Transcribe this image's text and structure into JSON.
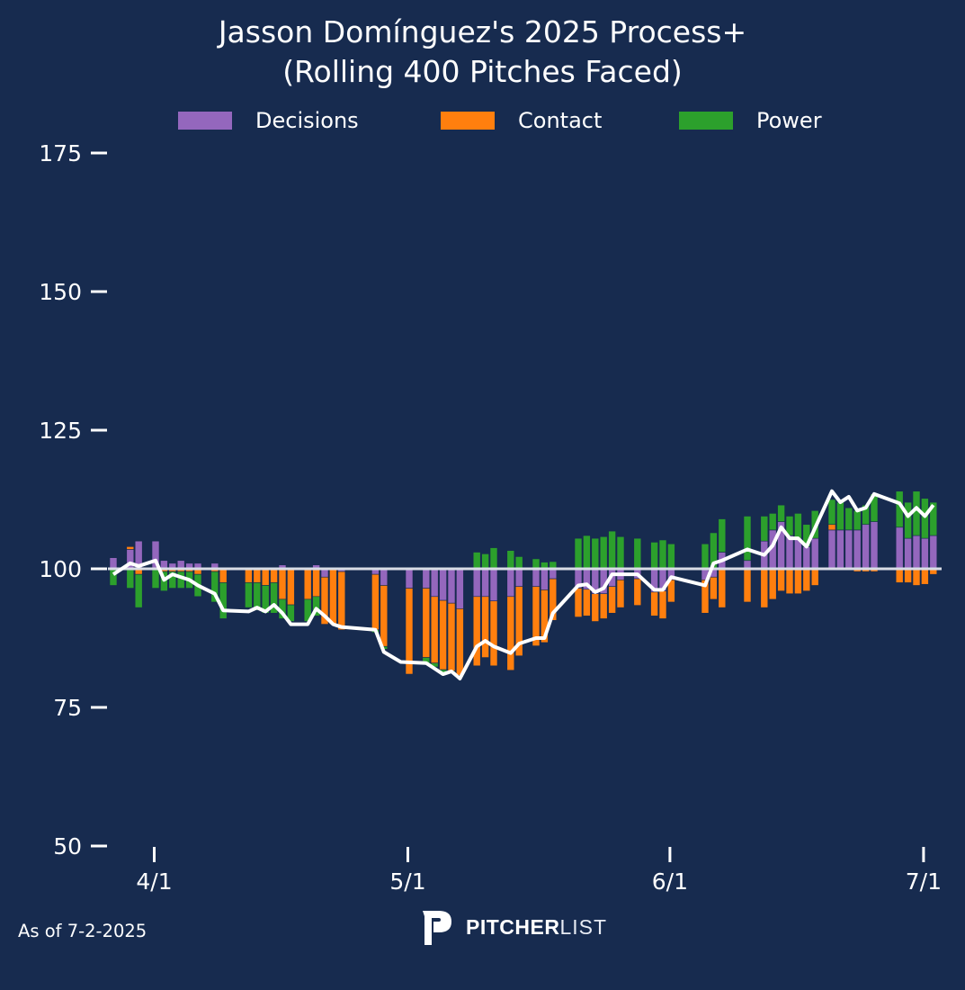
{
  "chart_data": {
    "type": "bar",
    "subtype": "stacked-diverging-with-line",
    "title": "Jasson Domínguez's 2025 Process+\n(Rolling 400 Pitches Faced)",
    "title_lines": [
      "Jasson Domínguez's 2025 Process+",
      "(Rolling 400 Pitches Faced)"
    ],
    "xlabel": "",
    "ylabel": "",
    "ylim": [
      50,
      175
    ],
    "yticks": [
      50,
      75,
      100,
      125,
      150,
      175
    ],
    "xticks": [
      {
        "label": "4/1",
        "day": 5
      },
      {
        "label": "5/1",
        "day": 35
      },
      {
        "label": "6/1",
        "day": 66
      },
      {
        "label": "7/1",
        "day": 96
      }
    ],
    "x_domain_days": [
      0,
      97
    ],
    "x_origin_date": "3/27",
    "baseline": 100,
    "grid": false,
    "legend": {
      "placement": "top-center",
      "entries": [
        {
          "name": "Decisions",
          "color": "#9467bd"
        },
        {
          "name": "Contact",
          "color": "#ff7f0e"
        },
        {
          "name": "Power",
          "color": "#2ca02c"
        }
      ]
    },
    "line_color": "#ffffff",
    "baseline_color": "#d9dde6",
    "series_keys": [
      "decisions",
      "contact",
      "power"
    ],
    "bars": [
      {
        "day": 0,
        "decisions": 2,
        "contact": 0,
        "power": -3
      },
      {
        "day": 2,
        "decisions": 3.5,
        "contact": 0.5,
        "power": -3.5
      },
      {
        "day": 3,
        "decisions": 5,
        "contact": -1,
        "power": -6
      },
      {
        "day": 5,
        "decisions": 5,
        "contact": 0,
        "power": -3.5
      },
      {
        "day": 6,
        "decisions": 1.5,
        "contact": -0.5,
        "power": -3.5
      },
      {
        "day": 7,
        "decisions": 1,
        "contact": -0.5,
        "power": -3
      },
      {
        "day": 8,
        "decisions": 1.5,
        "contact": -0.5,
        "power": -3
      },
      {
        "day": 9,
        "decisions": 1,
        "contact": -0.5,
        "power": -3
      },
      {
        "day": 10,
        "decisions": 1,
        "contact": -1,
        "power": -4
      },
      {
        "day": 12,
        "decisions": 1,
        "contact": -0.5,
        "power": -5.5
      },
      {
        "day": 13,
        "decisions": 0,
        "contact": -2.5,
        "power": -6.5
      },
      {
        "day": 16,
        "decisions": 0,
        "contact": -2.5,
        "power": -4.5
      },
      {
        "day": 17,
        "decisions": 0,
        "contact": -2.5,
        "power": -5
      },
      {
        "day": 18,
        "decisions": 0,
        "contact": -3,
        "power": -5
      },
      {
        "day": 19,
        "decisions": 0,
        "contact": -2.5,
        "power": -5.5
      },
      {
        "day": 20,
        "decisions": 0.7,
        "contact": -5.5,
        "power": -3.5
      },
      {
        "day": 21,
        "decisions": 0,
        "contact": -6.5,
        "power": -3
      },
      {
        "day": 23,
        "decisions": 0,
        "contact": -5.5,
        "power": -4
      },
      {
        "day": 24,
        "decisions": 0.7,
        "contact": -5,
        "power": -3.5
      },
      {
        "day": 25,
        "decisions": -1.5,
        "contact": -8.5,
        "power": 0
      },
      {
        "day": 26,
        "decisions": 0,
        "contact": -10,
        "power": 0
      },
      {
        "day": 27,
        "decisions": -0.5,
        "contact": -10.5,
        "power": 0
      },
      {
        "day": 31,
        "decisions": -1,
        "contact": -10,
        "power": -0.5
      },
      {
        "day": 32,
        "decisions": -3,
        "contact": -11,
        "power": -0.5
      },
      {
        "day": 35,
        "decisions": -3.5,
        "contact": -15.5,
        "power": 0
      },
      {
        "day": 37,
        "decisions": -3.5,
        "contact": -12.5,
        "power": -1
      },
      {
        "day": 38,
        "decisions": -5,
        "contact": -12,
        "power": -0.7
      },
      {
        "day": 39,
        "decisions": -5.7,
        "contact": -12.5,
        "power": -0.5
      },
      {
        "day": 40,
        "decisions": -6.2,
        "contact": -12.2,
        "power": -0.3
      },
      {
        "day": 41,
        "decisions": -7.2,
        "contact": -12,
        "power": -0.3
      },
      {
        "day": 43,
        "decisions": -5,
        "contact": -12.5,
        "power": 3
      },
      {
        "day": 44,
        "decisions": -5,
        "contact": -11,
        "power": 2.7
      },
      {
        "day": 45,
        "decisions": -5.8,
        "contact": -11.7,
        "power": 3.8
      },
      {
        "day": 47,
        "decisions": -5,
        "contact": -13.3,
        "power": 3.3
      },
      {
        "day": 48,
        "decisions": -3.2,
        "contact": -12.5,
        "power": 2.2
      },
      {
        "day": 50,
        "decisions": -3.2,
        "contact": -10.7,
        "power": 1.8
      },
      {
        "day": 51,
        "decisions": -3.8,
        "contact": -9.5,
        "power": 1.2
      },
      {
        "day": 52,
        "decisions": -1.8,
        "contact": -7.5,
        "power": 1.3
      },
      {
        "day": 55,
        "decisions": -3.5,
        "contact": -5.2,
        "power": 5.5
      },
      {
        "day": 56,
        "decisions": -3.7,
        "contact": -4.8,
        "power": 6
      },
      {
        "day": 57,
        "decisions": -4.5,
        "contact": -5,
        "power": 5.5
      },
      {
        "day": 58,
        "decisions": -4.5,
        "contact": -4.5,
        "power": 5.8
      },
      {
        "day": 59,
        "decisions": -3.2,
        "contact": -4.8,
        "power": 6.8
      },
      {
        "day": 60,
        "decisions": -2,
        "contact": -5,
        "power": 5.8
      },
      {
        "day": 62,
        "decisions": -1.8,
        "contact": -4.8,
        "power": 5.5
      },
      {
        "day": 64,
        "decisions": -4.2,
        "contact": -4.3,
        "power": 4.8
      },
      {
        "day": 65,
        "decisions": -4,
        "contact": -5,
        "power": 5.2
      },
      {
        "day": 66,
        "decisions": -2,
        "contact": -4,
        "power": 4.5
      },
      {
        "day": 70,
        "decisions": -2,
        "contact": -6,
        "power": 4.5
      },
      {
        "day": 71,
        "decisions": -1.5,
        "contact": -4,
        "power": 6.5
      },
      {
        "day": 72,
        "decisions": 3,
        "contact": -7,
        "power": 6
      },
      {
        "day": 75,
        "decisions": 1.5,
        "contact": -6,
        "power": 8
      },
      {
        "day": 77,
        "decisions": 5,
        "contact": -7,
        "power": 4.5
      },
      {
        "day": 78,
        "decisions": 7,
        "contact": -5.5,
        "power": 3
      },
      {
        "day": 79,
        "decisions": 8.5,
        "contact": -4,
        "power": 3
      },
      {
        "day": 80,
        "decisions": 6,
        "contact": -4.5,
        "power": 3.5
      },
      {
        "day": 81,
        "decisions": 5.5,
        "contact": -4.5,
        "power": 4.5
      },
      {
        "day": 82,
        "decisions": 4,
        "contact": -4,
        "power": 4
      },
      {
        "day": 83,
        "decisions": 5.5,
        "contact": -3,
        "power": 5
      },
      {
        "day": 85,
        "decisions": 7,
        "contact": 1,
        "power": 4.5
      },
      {
        "day": 86,
        "decisions": 7,
        "contact": 0,
        "power": 5
      },
      {
        "day": 87,
        "decisions": 7,
        "contact": 0,
        "power": 4
      },
      {
        "day": 88,
        "decisions": 7,
        "contact": -0.5,
        "power": 3.5
      },
      {
        "day": 89,
        "decisions": 8,
        "contact": -0.5,
        "power": 3.5
      },
      {
        "day": 90,
        "decisions": 8.5,
        "contact": -0.5,
        "power": 5
      },
      {
        "day": 93,
        "decisions": 7.5,
        "contact": -2.5,
        "power": 6.5
      },
      {
        "day": 94,
        "decisions": 5.5,
        "contact": -2.5,
        "power": 6.5
      },
      {
        "day": 95,
        "decisions": 6,
        "contact": -3,
        "power": 8
      },
      {
        "day": 96,
        "decisions": 5.5,
        "contact": -2.8,
        "power": 7.2
      },
      {
        "day": 97,
        "decisions": 6,
        "contact": -1,
        "power": 6
      }
    ],
    "line": [
      {
        "day": 0,
        "value": 99
      },
      {
        "day": 2,
        "value": 101
      },
      {
        "day": 3,
        "value": 100.5
      },
      {
        "day": 5,
        "value": 101.5
      },
      {
        "day": 6,
        "value": 98
      },
      {
        "day": 7,
        "value": 99
      },
      {
        "day": 8,
        "value": 98.5
      },
      {
        "day": 9,
        "value": 98
      },
      {
        "day": 10,
        "value": 97
      },
      {
        "day": 12,
        "value": 95.5
      },
      {
        "day": 13,
        "value": 92.5
      },
      {
        "day": 16,
        "value": 92.3
      },
      {
        "day": 17,
        "value": 93
      },
      {
        "day": 18,
        "value": 92.3
      },
      {
        "day": 19,
        "value": 93.5
      },
      {
        "day": 20,
        "value": 92
      },
      {
        "day": 21,
        "value": 90
      },
      {
        "day": 23,
        "value": 90
      },
      {
        "day": 24,
        "value": 92.8
      },
      {
        "day": 25,
        "value": 91.5
      },
      {
        "day": 26,
        "value": 90
      },
      {
        "day": 27,
        "value": 89.5
      },
      {
        "day": 31,
        "value": 89
      },
      {
        "day": 32,
        "value": 85
      },
      {
        "day": 34,
        "value": 83.2
      },
      {
        "day": 37,
        "value": 83
      },
      {
        "day": 38,
        "value": 82
      },
      {
        "day": 39,
        "value": 81
      },
      {
        "day": 40,
        "value": 81.5
      },
      {
        "day": 41,
        "value": 80.2
      },
      {
        "day": 43,
        "value": 86
      },
      {
        "day": 44,
        "value": 87
      },
      {
        "day": 45,
        "value": 86
      },
      {
        "day": 47,
        "value": 84.8
      },
      {
        "day": 48,
        "value": 86.5
      },
      {
        "day": 50,
        "value": 87.5
      },
      {
        "day": 51,
        "value": 87.5
      },
      {
        "day": 52,
        "value": 92
      },
      {
        "day": 55,
        "value": 97
      },
      {
        "day": 56,
        "value": 97.2
      },
      {
        "day": 57,
        "value": 95.8
      },
      {
        "day": 58,
        "value": 96.5
      },
      {
        "day": 59,
        "value": 99
      },
      {
        "day": 62,
        "value": 99
      },
      {
        "day": 64,
        "value": 96.2
      },
      {
        "day": 65,
        "value": 96.2
      },
      {
        "day": 66,
        "value": 98.5
      },
      {
        "day": 70,
        "value": 97
      },
      {
        "day": 71,
        "value": 101
      },
      {
        "day": 72,
        "value": 101.5
      },
      {
        "day": 75,
        "value": 103.5
      },
      {
        "day": 77,
        "value": 102.5
      },
      {
        "day": 78,
        "value": 104.2
      },
      {
        "day": 79,
        "value": 107.5
      },
      {
        "day": 80,
        "value": 105.5
      },
      {
        "day": 81,
        "value": 105.5
      },
      {
        "day": 82,
        "value": 104
      },
      {
        "day": 85,
        "value": 114
      },
      {
        "day": 86,
        "value": 112
      },
      {
        "day": 87,
        "value": 113
      },
      {
        "day": 88,
        "value": 110.5
      },
      {
        "day": 89,
        "value": 111
      },
      {
        "day": 90,
        "value": 113.5
      },
      {
        "day": 93,
        "value": 111.8
      },
      {
        "day": 94,
        "value": 109.5
      },
      {
        "day": 95,
        "value": 111
      },
      {
        "day": 96,
        "value": 109.5
      },
      {
        "day": 97,
        "value": 111.5
      }
    ]
  },
  "footer": {
    "as_of": "As of 7-2-2025",
    "logo_bold": "PITCHER",
    "logo_light": "LIST"
  }
}
